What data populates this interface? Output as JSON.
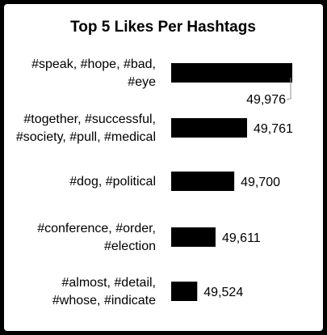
{
  "chart_data": {
    "type": "bar",
    "orientation": "horizontal",
    "title": "Top 5 Likes Per Hashtags",
    "categories": [
      "#speak, #hope, #bad, #eye",
      "#together, #successful, #society, #pull, #medical",
      "#dog, #political",
      "#conference, #order, #election",
      "#almost, #detail, #whose, #indicate"
    ],
    "category_lines": [
      [
        "#speak, #hope, #bad,",
        "#eye"
      ],
      [
        "#together, #successful,",
        "#society, #pull, #medical"
      ],
      [
        "#dog, #political"
      ],
      [
        "#conference, #order,",
        "#election"
      ],
      [
        "#almost, #detail,",
        "#whose, #indicate"
      ]
    ],
    "values": [
      49976,
      49761,
      49700,
      49611,
      49524
    ],
    "value_labels": [
      "49,976",
      "49,761",
      "49,700",
      "49,611",
      "49,524"
    ],
    "bar_color": "#000000",
    "grid": false,
    "legend": "none",
    "xlabel": "",
    "ylabel": ""
  }
}
